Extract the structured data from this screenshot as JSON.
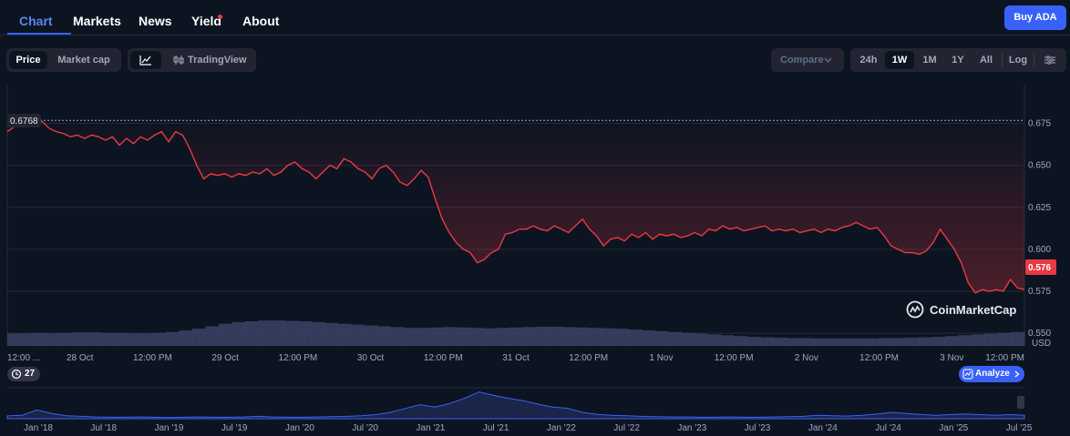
{
  "nav": {
    "tabs": [
      "Chart",
      "Markets",
      "News",
      "Yield",
      "About"
    ],
    "active": "Chart",
    "buy_label": "Buy ADA"
  },
  "toolbar": {
    "view_toggle": [
      "Price",
      "Market cap"
    ],
    "view_active": "Price",
    "chart_type_label": "TradingView",
    "compare_label": "Compare",
    "ranges": [
      "24h",
      "1W",
      "1M",
      "1Y",
      "All"
    ],
    "range_active": "1W",
    "log_label": "Log"
  },
  "colors": {
    "background": "#0d1421",
    "line_down": "#ea3943",
    "line_up": "#16c784",
    "accent": "#3861fb",
    "volume": "#3a4364"
  },
  "chart_data": {
    "type": "line",
    "y_ticks": [
      "0.675",
      "0.650",
      "0.625",
      "0.600",
      "0.575",
      "0.550"
    ],
    "y_unit": "USD",
    "ylim": [
      0.5425,
      0.6975
    ],
    "x_ticks": [
      "12:00 ...",
      "28 Oct",
      "12:00 PM",
      "29 Oct",
      "12:00 PM",
      "30 Oct",
      "12:00 PM",
      "31 Oct",
      "12:00 PM",
      "1 Nov",
      "12:00 PM",
      "2 Nov",
      "12:00 PM",
      "3 Nov",
      "12:00 PM"
    ],
    "open_price_label": "0.6768",
    "open_price": 0.6768,
    "current_price_label": "0.576",
    "current_price": 0.576,
    "series": [
      {
        "values": [
          0.67,
          0.673,
          0.676,
          0.678,
          0.677,
          0.676,
          0.672,
          0.67,
          0.669,
          0.667,
          0.668,
          0.666,
          0.668,
          0.667,
          0.665,
          0.667,
          0.662,
          0.666,
          0.663,
          0.667,
          0.665,
          0.668,
          0.67,
          0.664,
          0.67,
          0.668,
          0.66,
          0.65,
          0.642,
          0.645,
          0.644,
          0.645,
          0.643,
          0.645,
          0.644,
          0.646,
          0.645,
          0.648,
          0.644,
          0.646,
          0.65,
          0.652,
          0.648,
          0.646,
          0.642,
          0.646,
          0.65,
          0.648,
          0.654,
          0.652,
          0.648,
          0.646,
          0.642,
          0.648,
          0.65,
          0.646,
          0.64,
          0.638,
          0.642,
          0.647,
          0.643,
          0.63,
          0.618,
          0.61,
          0.604,
          0.6,
          0.598,
          0.592,
          0.594,
          0.598,
          0.6,
          0.609,
          0.61,
          0.612,
          0.612,
          0.614,
          0.612,
          0.611,
          0.614,
          0.612,
          0.61,
          0.614,
          0.618,
          0.612,
          0.608,
          0.602,
          0.606,
          0.607,
          0.605,
          0.609,
          0.607,
          0.61,
          0.606,
          0.609,
          0.608,
          0.609,
          0.607,
          0.608,
          0.61,
          0.608,
          0.612,
          0.611,
          0.614,
          0.612,
          0.613,
          0.611,
          0.612,
          0.613,
          0.614,
          0.611,
          0.612,
          0.611,
          0.612,
          0.61,
          0.611,
          0.612,
          0.61,
          0.612,
          0.611,
          0.613,
          0.614,
          0.616,
          0.614,
          0.612,
          0.613,
          0.608,
          0.602,
          0.6,
          0.598,
          0.598,
          0.597,
          0.599,
          0.604,
          0.612,
          0.606,
          0.6,
          0.592,
          0.58,
          0.574,
          0.576,
          0.575,
          0.576,
          0.575,
          0.582,
          0.577,
          0.576
        ],
        "x_start_frac": 0.0,
        "x_end_frac": 1.0
      }
    ],
    "legend": "none",
    "grid": "horizontal"
  },
  "volume_data": {
    "values": [
      0.3,
      0.31,
      0.32,
      0.31,
      0.32,
      0.33,
      0.33,
      0.32,
      0.32,
      0.31,
      0.31,
      0.32,
      0.34,
      0.38,
      0.42,
      0.48,
      0.54,
      0.58,
      0.6,
      0.62,
      0.62,
      0.61,
      0.6,
      0.58,
      0.56,
      0.54,
      0.52,
      0.5,
      0.48,
      0.46,
      0.44,
      0.44,
      0.45,
      0.46,
      0.45,
      0.44,
      0.43,
      0.44,
      0.45,
      0.46,
      0.47,
      0.47,
      0.46,
      0.45,
      0.44,
      0.43,
      0.42,
      0.4,
      0.38,
      0.36,
      0.34,
      0.32,
      0.3,
      0.28,
      0.26,
      0.24,
      0.22,
      0.21,
      0.2,
      0.19,
      0.19,
      0.18,
      0.18,
      0.18,
      0.18,
      0.18,
      0.19,
      0.19,
      0.2,
      0.21,
      0.22,
      0.24,
      0.26,
      0.28,
      0.3,
      0.32,
      0.34
    ]
  },
  "navigator": {
    "badge_label": "27",
    "analyze_label": "Analyze",
    "x_ticks": [
      "Jan '18",
      "Jul '18",
      "Jan '19",
      "Jul '19",
      "Jan '20",
      "Jul '20",
      "Jan '21",
      "Jul '21",
      "Jan '22",
      "Jul '22",
      "Jan '23",
      "Jul '23",
      "Jan '24",
      "Jul '24",
      "Jan '25",
      "Jul '25"
    ],
    "history": [
      0.1,
      0.12,
      0.3,
      0.18,
      0.1,
      0.08,
      0.06,
      0.05,
      0.05,
      0.06,
      0.05,
      0.04,
      0.05,
      0.06,
      0.05,
      0.05,
      0.06,
      0.08,
      0.06,
      0.05,
      0.05,
      0.06,
      0.07,
      0.08,
      0.1,
      0.14,
      0.22,
      0.35,
      0.48,
      0.4,
      0.52,
      0.7,
      0.92,
      0.8,
      0.7,
      0.62,
      0.5,
      0.4,
      0.36,
      0.22,
      0.15,
      0.12,
      0.1,
      0.08,
      0.07,
      0.06,
      0.06,
      0.05,
      0.05,
      0.06,
      0.05,
      0.05,
      0.06,
      0.07,
      0.08,
      0.12,
      0.1,
      0.09,
      0.12,
      0.16,
      0.22,
      0.18,
      0.14,
      0.12,
      0.14,
      0.16,
      0.14,
      0.12,
      0.14,
      0.12
    ]
  },
  "watermark": "CoinMarketCap"
}
